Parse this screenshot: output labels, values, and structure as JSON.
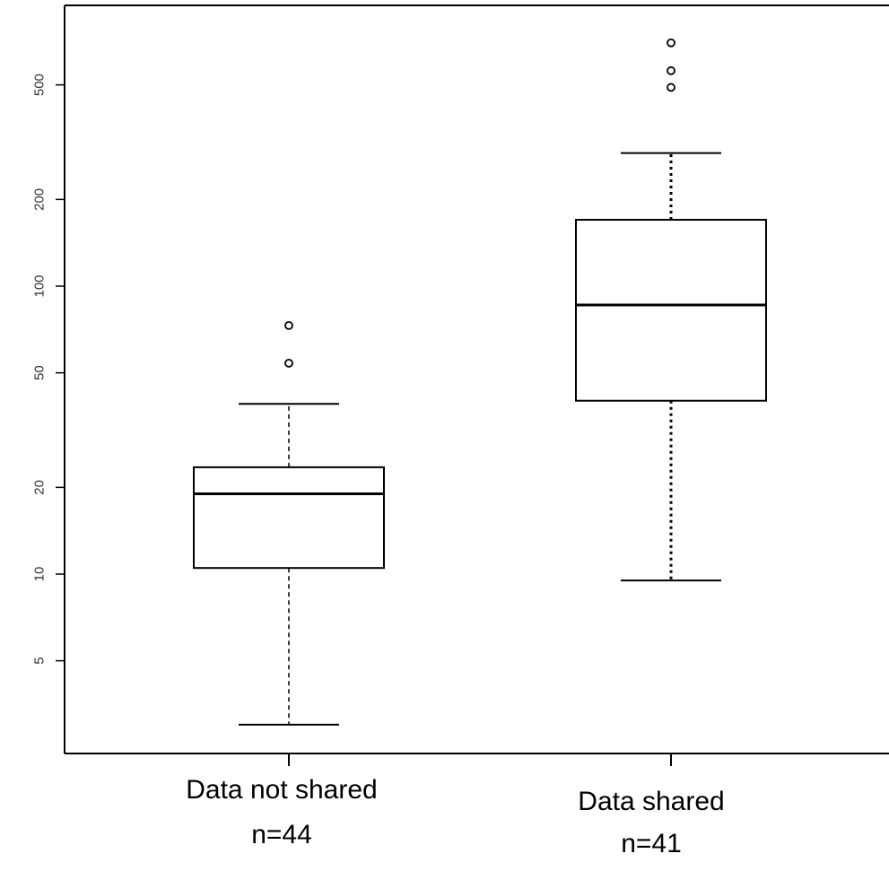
{
  "chart_data": {
    "type": "box",
    "y_scale": "log",
    "ylim": [
      3,
      800
    ],
    "yticks": [
      5,
      10,
      20,
      50,
      100,
      200,
      500
    ],
    "ytick_labels": [
      "5",
      "10",
      "20",
      "50",
      "100",
      "200",
      "500"
    ],
    "grid": false,
    "legend": "none",
    "groups": [
      {
        "label": "Data not  shared",
        "n_label": "n=44",
        "whisker_low": 3.0,
        "q1": 10.5,
        "median": 19,
        "q3": 23.5,
        "whisker_high": 39,
        "outliers": [
          54,
          73
        ],
        "whisker_style": "dashed"
      },
      {
        "label": "Data shared",
        "n_label": "n=41",
        "whisker_low": 9.5,
        "q1": 40,
        "median": 86,
        "q3": 170,
        "whisker_high": 290,
        "outliers": [
          490,
          560,
          700
        ],
        "whisker_style": "dotted"
      }
    ]
  }
}
